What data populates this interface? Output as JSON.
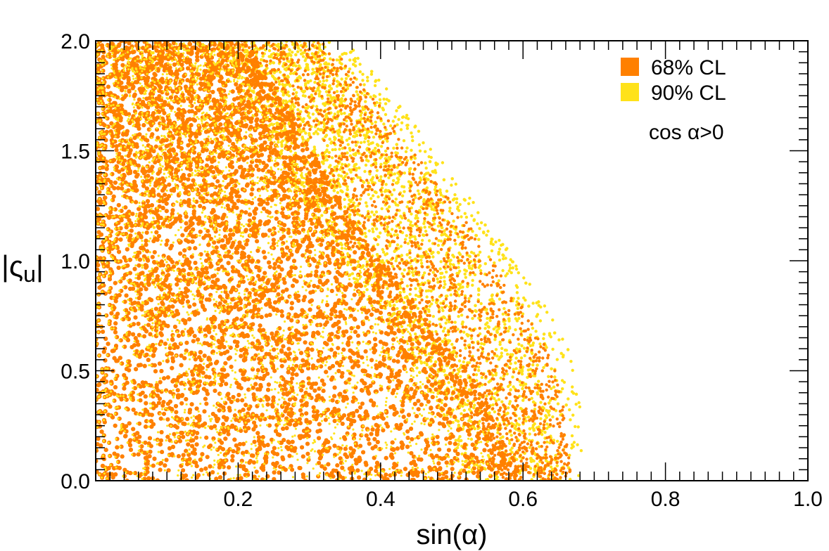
{
  "chart_data": {
    "type": "scatter",
    "title": "",
    "xlabel": "sin(α)",
    "ylabel": "|ς",
    "ylabel_sub": "u",
    "ylabel_close": "|",
    "xlim": [
      0.0,
      1.0
    ],
    "ylim": [
      0.0,
      2.0
    ],
    "x_ticks": [
      0.2,
      0.4,
      0.6,
      0.8,
      1.0
    ],
    "x_tick_labels": [
      "0.2",
      "0.4",
      "0.6",
      "0.8",
      "1.0"
    ],
    "y_ticks": [
      0.0,
      0.5,
      1.0,
      1.5,
      2.0
    ],
    "y_tick_labels": [
      "0.0",
      "0.5",
      "1.0",
      "1.5",
      "2.0"
    ],
    "grid": false,
    "legend_position": "top-right",
    "annotation": "cos α>0",
    "series": [
      {
        "name": "68% CL",
        "color": "#ff8000",
        "boundary": [
          [
            0.0,
            2.0
          ],
          [
            0.18,
            2.0
          ],
          [
            0.24,
            1.7
          ],
          [
            0.3,
            1.35
          ],
          [
            0.36,
            1.05
          ],
          [
            0.42,
            0.8
          ],
          [
            0.48,
            0.55
          ],
          [
            0.52,
            0.35
          ],
          [
            0.55,
            0.15
          ],
          [
            0.57,
            0.0
          ]
        ]
      },
      {
        "name": "90% CL",
        "color": "#ffe21a",
        "boundary": [
          [
            0.0,
            2.0
          ],
          [
            0.35,
            2.0
          ],
          [
            0.4,
            1.82
          ],
          [
            0.44,
            1.65
          ],
          [
            0.5,
            1.4
          ],
          [
            0.56,
            1.15
          ],
          [
            0.6,
            0.95
          ],
          [
            0.64,
            0.75
          ],
          [
            0.67,
            0.55
          ],
          [
            0.68,
            0.35
          ],
          [
            0.685,
            0.0
          ]
        ]
      }
    ]
  }
}
